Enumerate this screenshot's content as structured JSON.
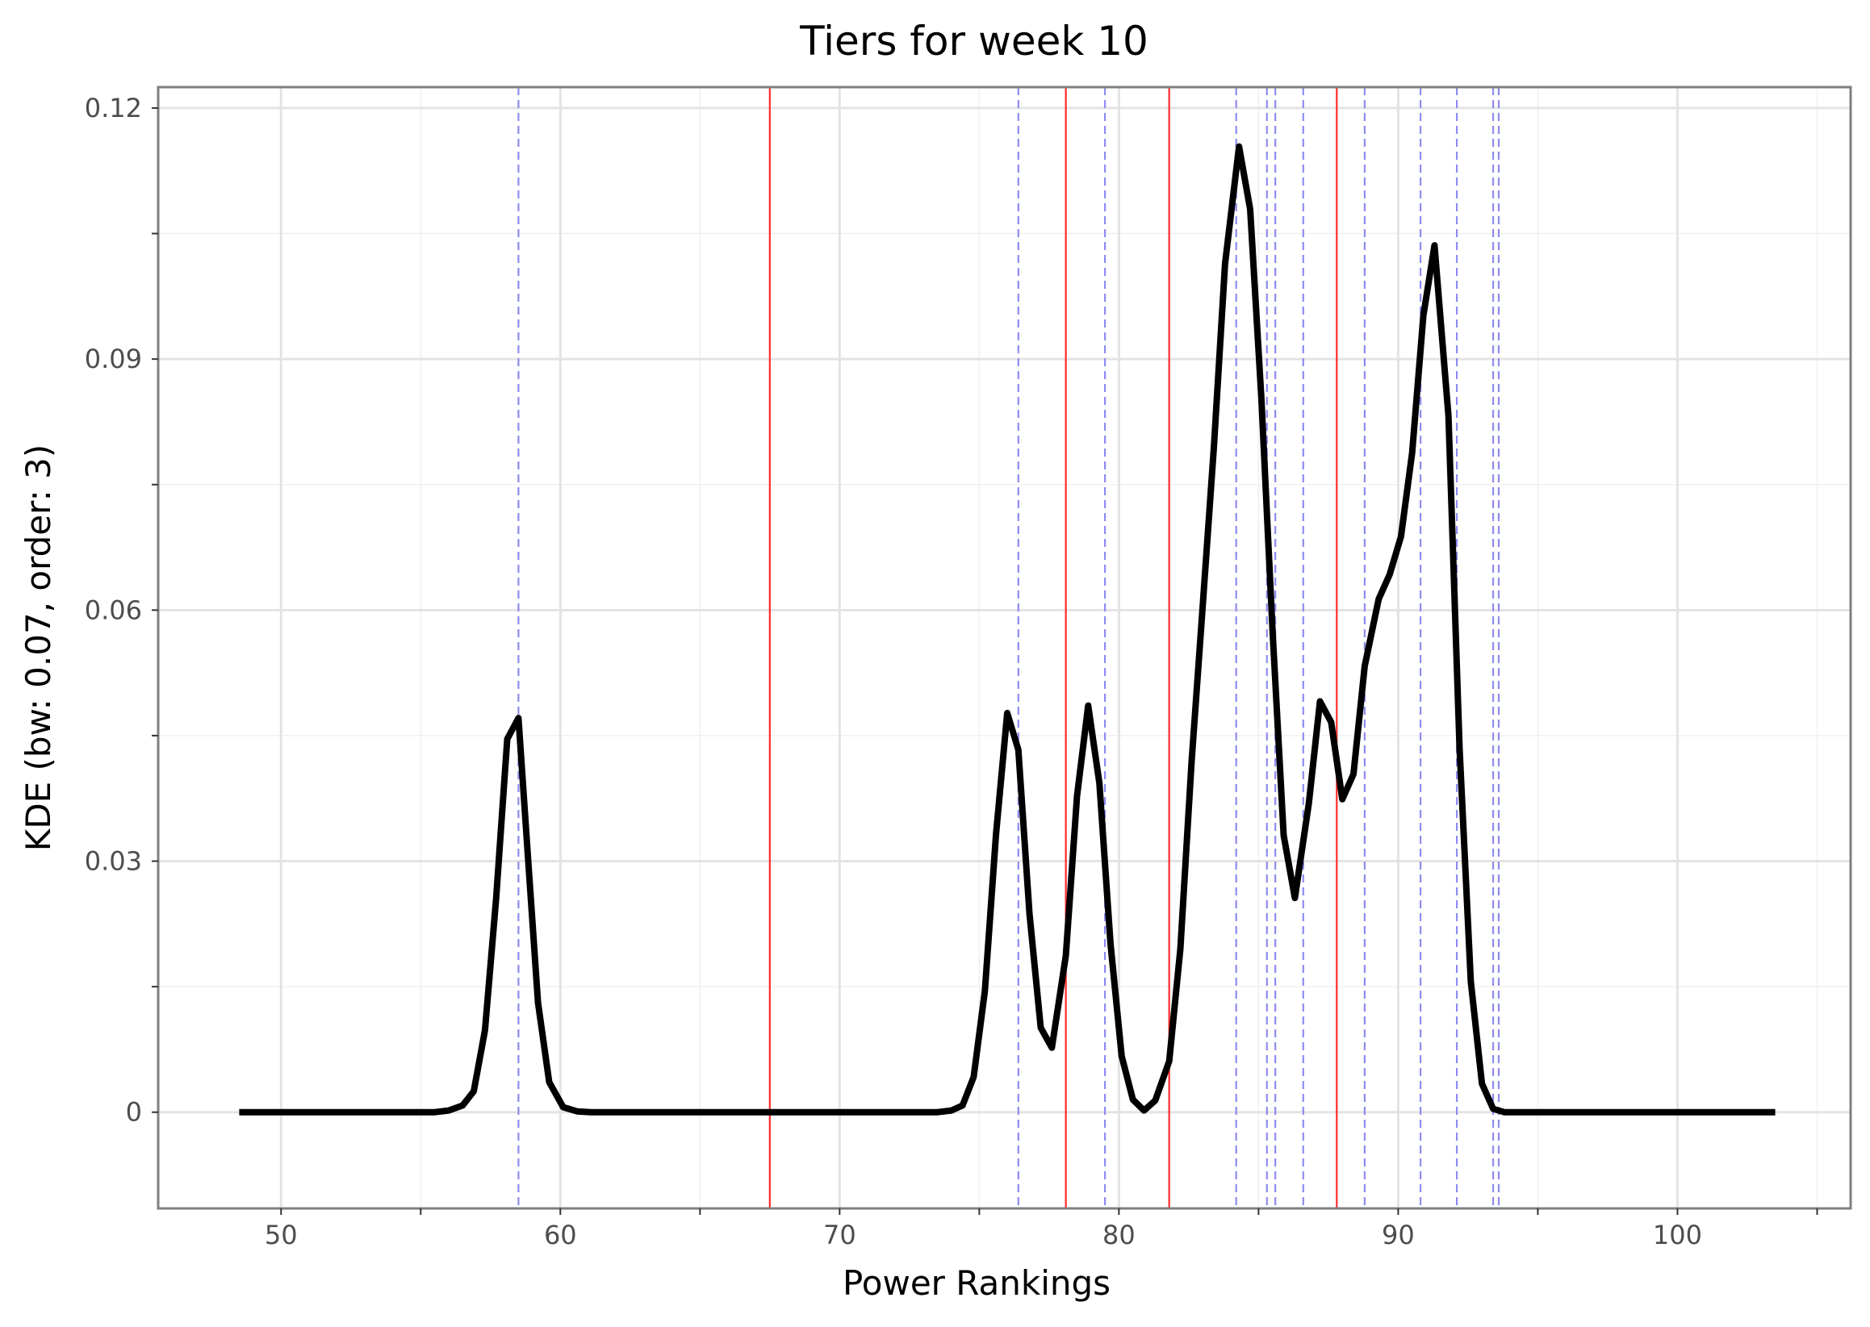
{
  "chart_data": {
    "type": "line",
    "title": "Tiers for week 10",
    "xlabel": "Power Rankings",
    "ylabel": "KDE (bw: 0.07, order: 3)",
    "xlim": [
      45.6,
      106.2
    ],
    "ylim": [
      -0.0115,
      0.1225
    ],
    "x_ticks": [
      50,
      60,
      70,
      80,
      90,
      100
    ],
    "x_tick_labels": [
      "50",
      "60",
      "70",
      "80",
      "90",
      "100"
    ],
    "x_minor_ticks": [
      55,
      65,
      75,
      85,
      95,
      105
    ],
    "y_ticks": [
      0,
      0.03,
      0.06,
      0.09,
      0.12
    ],
    "y_tick_labels": [
      "0",
      "0.03",
      "0.06",
      "0.09",
      "0.12"
    ],
    "y_minor_ticks": [
      0.015,
      0.045,
      0.075,
      0.105
    ],
    "grid": true,
    "series": [
      {
        "color": "#000000",
        "x": [
          48.5,
          55.5,
          56.0,
          56.5,
          56.9,
          57.3,
          57.7,
          58.1,
          58.5,
          58.8,
          59.2,
          59.6,
          60.1,
          60.6,
          61.1,
          73.5,
          74.0,
          74.4,
          74.8,
          75.2,
          75.6,
          76.0,
          76.4,
          76.8,
          77.2,
          77.6,
          78.1,
          78.5,
          78.9,
          79.3,
          79.7,
          80.1,
          80.5,
          80.9,
          81.3,
          81.8,
          82.2,
          82.6,
          83.0,
          83.4,
          83.8,
          84.3,
          84.7,
          85.1,
          85.5,
          85.9,
          86.3,
          86.8,
          87.2,
          87.6,
          88.0,
          88.4,
          88.8,
          89.3,
          89.7,
          90.1,
          90.5,
          90.9,
          91.3,
          91.8,
          92.2,
          92.6,
          93.0,
          93.4,
          93.8,
          94.2,
          94.6,
          95.0,
          95.4,
          95.8,
          96.3,
          103.5
        ],
        "y": [
          0.0,
          0.0,
          0.0002,
          0.0008,
          0.0025,
          0.0098,
          0.0255,
          0.0446,
          0.0471,
          0.0324,
          0.0131,
          0.0036,
          0.0006,
          0.0001,
          0.0,
          0.0,
          0.0002,
          0.0008,
          0.0042,
          0.0145,
          0.0332,
          0.0477,
          0.0433,
          0.0237,
          0.0101,
          0.0077,
          0.0187,
          0.0378,
          0.0486,
          0.0393,
          0.0201,
          0.0067,
          0.0015,
          0.0002,
          0.0014,
          0.0061,
          0.0195,
          0.0417,
          0.0605,
          0.0794,
          0.1014,
          0.1154,
          0.1079,
          0.0853,
          0.0576,
          0.0331,
          0.0256,
          0.0369,
          0.0491,
          0.0466,
          0.0374,
          0.0404,
          0.0533,
          0.0613,
          0.0643,
          0.0688,
          0.0788,
          0.0952,
          0.1036,
          0.0832,
          0.0434,
          0.0156,
          0.0034,
          0.0004,
          0.0,
          0.0,
          0.0,
          0.0,
          0.0,
          0.0,
          0.0,
          0.0
        ]
      }
    ],
    "tier_breaks": {
      "color": "#ff2b2b",
      "x": [
        67.5,
        78.1,
        81.8,
        87.8
      ]
    },
    "team_markers": {
      "color": "#8c8cf0",
      "style": "dashed",
      "x": [
        58.5,
        76.4,
        79.5,
        84.2,
        85.3,
        85.6,
        86.6,
        88.8,
        90.8,
        92.1,
        93.4,
        93.6
      ]
    }
  }
}
